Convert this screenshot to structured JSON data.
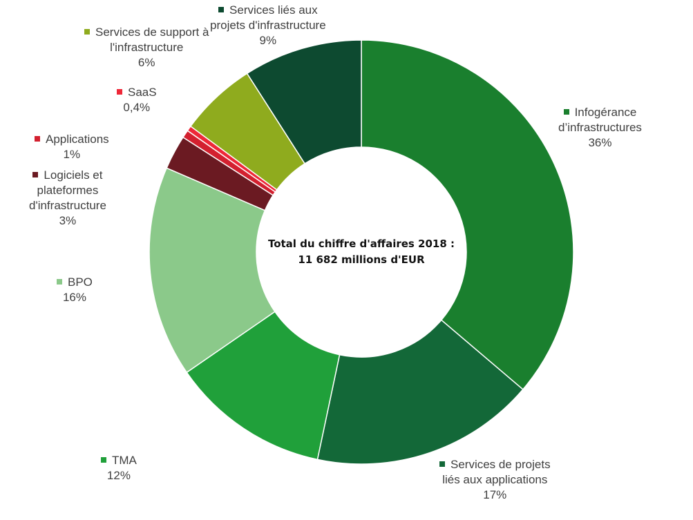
{
  "chart_data": {
    "type": "pie",
    "donut": true,
    "center_text": [
      "Total du chiffre d'affaires 2018 :",
      "11 682 millions d'EUR"
    ],
    "slices": [
      {
        "label": [
          "Infogérance",
          "d’infrastructures"
        ],
        "percent_label": "36%",
        "value": 36,
        "color": "#1a7f2e"
      },
      {
        "label": [
          "Services de projets",
          "liés aux applications"
        ],
        "percent_label": "17%",
        "value": 17,
        "color": "#136838"
      },
      {
        "label": [
          "TMA"
        ],
        "percent_label": "12%",
        "value": 12,
        "color": "#20a03a"
      },
      {
        "label": [
          "BPO"
        ],
        "percent_label": "16%",
        "value": 16,
        "color": "#8bc98a"
      },
      {
        "label": [
          "Logiciels et",
          "plateformes",
          "d'infrastructure"
        ],
        "percent_label": "3%",
        "value": 2.6,
        "color": "#6b1a22"
      },
      {
        "label": [
          "Applications"
        ],
        "percent_label": "1%",
        "value": 0.6,
        "color": "#d3202f"
      },
      {
        "label": [
          "SaaS"
        ],
        "percent_label": "0,4%",
        "value": 0.4,
        "color": "#ee2838"
      },
      {
        "label": [
          "Services de support à",
          "l'infrastructure"
        ],
        "percent_label": "6%",
        "value": 5.8,
        "color": "#8fab1e"
      },
      {
        "label": [
          "Services liés aux",
          "projets d'infrastructure"
        ],
        "percent_label": "9%",
        "value": 9,
        "color": "#0d4a30"
      }
    ]
  }
}
